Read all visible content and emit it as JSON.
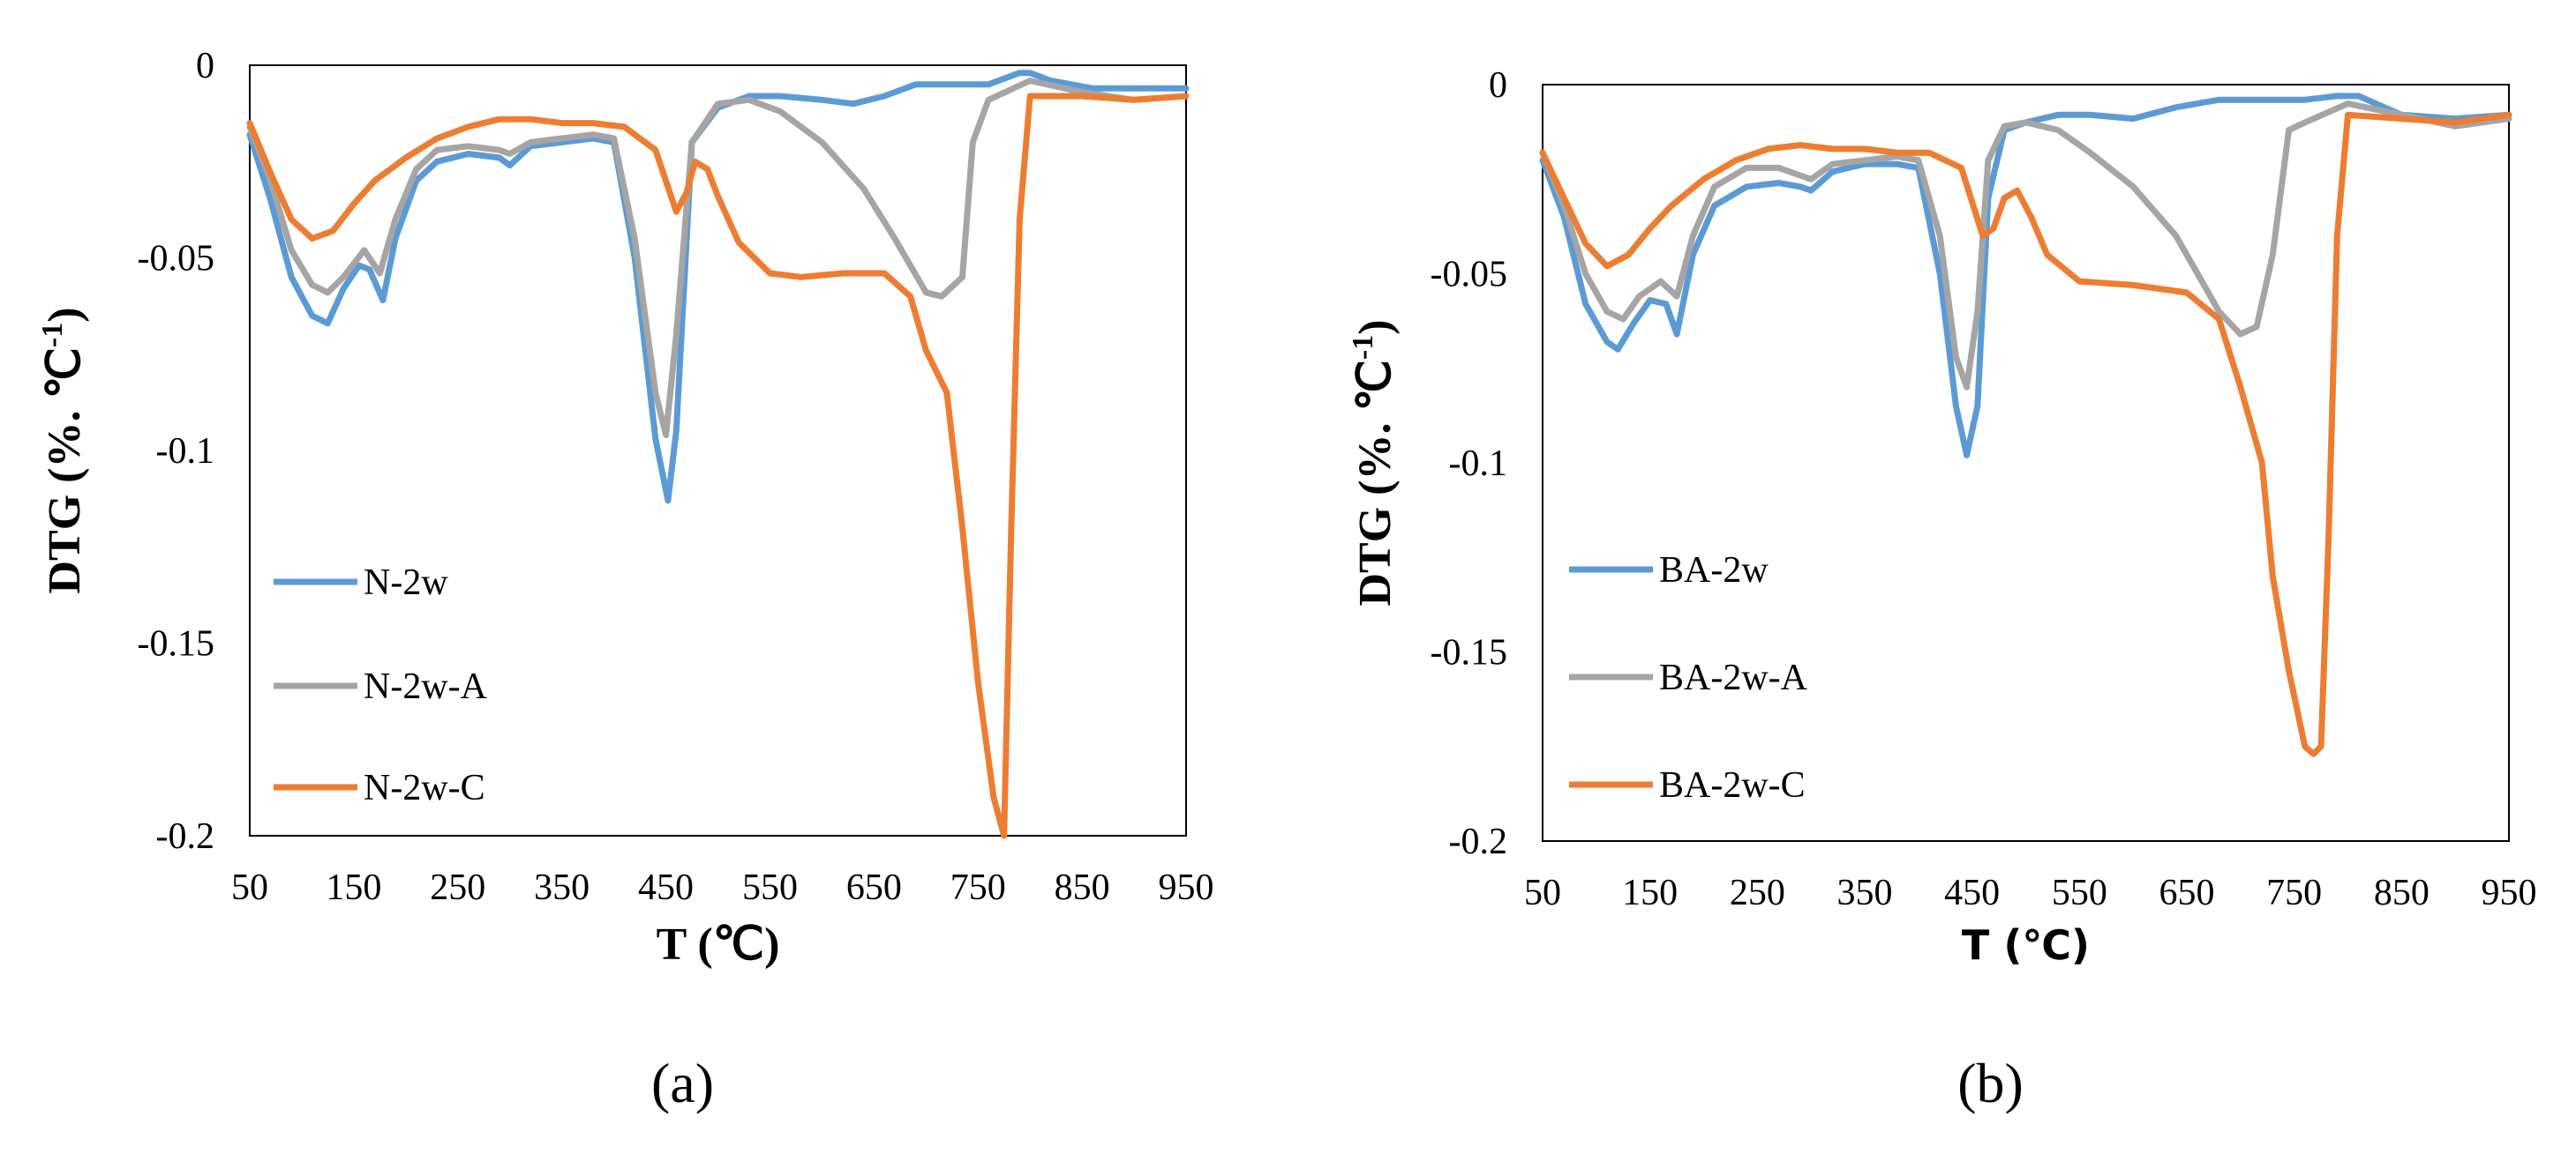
{
  "colors": {
    "blue": "#5b9bd5",
    "gray": "#a5a5a5",
    "orange": "#ed7d31"
  },
  "chart_data": [
    {
      "type": "line",
      "panel_label": "(a)",
      "xlabel": "T (℃)",
      "ylabel": "DTG (%. ℃",
      "ylabel_sup": "-1",
      "ylabel_close": ")",
      "xlim": [
        50,
        950
      ],
      "ylim": [
        -0.2,
        0
      ],
      "x_ticks": [
        "50",
        "150",
        "250",
        "350",
        "450",
        "550",
        "650",
        "750",
        "850",
        "950"
      ],
      "y_ticks": [
        "0",
        "-0.05",
        "-0.1",
        "-0.15",
        "-0.2"
      ],
      "legend_position": "left-bottom",
      "series": [
        {
          "name": "N-2w",
          "color": "#5b9bd5",
          "x": [
            50,
            70,
            90,
            110,
            125,
            140,
            155,
            165,
            178,
            190,
            210,
            230,
            260,
            290,
            300,
            320,
            350,
            380,
            400,
            420,
            440,
            452,
            460,
            475,
            500,
            530,
            560,
            600,
            630,
            660,
            690,
            730,
            760,
            790,
            800,
            820,
            860,
            900,
            930,
            950
          ],
          "y": [
            -0.018,
            -0.035,
            -0.055,
            -0.065,
            -0.067,
            -0.058,
            -0.052,
            -0.053,
            -0.061,
            -0.045,
            -0.03,
            -0.025,
            -0.023,
            -0.024,
            -0.026,
            -0.021,
            -0.02,
            -0.019,
            -0.02,
            -0.05,
            -0.097,
            -0.113,
            -0.095,
            -0.02,
            -0.011,
            -0.008,
            -0.008,
            -0.009,
            -0.01,
            -0.008,
            -0.005,
            -0.005,
            -0.005,
            -0.002,
            -0.002,
            -0.004,
            -0.006,
            -0.006,
            -0.006,
            -0.006
          ]
        },
        {
          "name": "N-2w-A",
          "color": "#a5a5a5",
          "x": [
            50,
            70,
            90,
            110,
            125,
            140,
            160,
            175,
            190,
            210,
            230,
            260,
            290,
            300,
            320,
            350,
            380,
            400,
            420,
            440,
            450,
            460,
            475,
            500,
            530,
            560,
            600,
            640,
            670,
            700,
            715,
            735,
            745,
            760,
            800,
            850,
            900,
            950
          ],
          "y": [
            -0.016,
            -0.03,
            -0.048,
            -0.057,
            -0.059,
            -0.055,
            -0.048,
            -0.054,
            -0.04,
            -0.027,
            -0.022,
            -0.021,
            -0.022,
            -0.023,
            -0.02,
            -0.019,
            -0.018,
            -0.019,
            -0.045,
            -0.085,
            -0.096,
            -0.07,
            -0.02,
            -0.01,
            -0.009,
            -0.012,
            -0.02,
            -0.032,
            -0.045,
            -0.059,
            -0.06,
            -0.055,
            -0.02,
            -0.009,
            -0.004,
            -0.007,
            -0.009,
            -0.008
          ]
        },
        {
          "name": "N-2w-C",
          "color": "#ed7d31",
          "x": [
            50,
            70,
            90,
            110,
            130,
            150,
            170,
            200,
            230,
            260,
            290,
            320,
            350,
            380,
            410,
            440,
            460,
            470,
            478,
            490,
            500,
            520,
            550,
            580,
            620,
            660,
            685,
            700,
            720,
            735,
            750,
            765,
            775,
            782,
            790,
            800,
            850,
            900,
            950
          ],
          "y": [
            -0.015,
            -0.028,
            -0.04,
            -0.045,
            -0.043,
            -0.036,
            -0.03,
            -0.024,
            -0.019,
            -0.016,
            -0.014,
            -0.014,
            -0.015,
            -0.015,
            -0.016,
            -0.022,
            -0.038,
            -0.033,
            -0.025,
            -0.027,
            -0.034,
            -0.046,
            -0.054,
            -0.055,
            -0.054,
            -0.054,
            -0.06,
            -0.074,
            -0.085,
            -0.12,
            -0.16,
            -0.19,
            -0.2,
            -0.12,
            -0.04,
            -0.008,
            -0.008,
            -0.009,
            -0.008
          ]
        }
      ]
    },
    {
      "type": "line",
      "panel_label": "(b)",
      "xlabel": "T (℃)",
      "ylabel": "DTG (%. ℃",
      "ylabel_sup": "-1",
      "ylabel_close": ")",
      "xlim": [
        50,
        950
      ],
      "ylim": [
        -0.2,
        0
      ],
      "x_ticks": [
        "50",
        "150",
        "250",
        "350",
        "450",
        "550",
        "650",
        "750",
        "850",
        "950"
      ],
      "y_ticks": [
        "0",
        "-0.05",
        "-0.1",
        "-0.15",
        "-0.2"
      ],
      "legend_position": "left-bottom",
      "series": [
        {
          "name": "BA-2w",
          "color": "#5b9bd5",
          "x": [
            50,
            70,
            90,
            110,
            120,
            135,
            150,
            165,
            175,
            190,
            210,
            240,
            270,
            290,
            300,
            320,
            350,
            380,
            400,
            420,
            435,
            445,
            455,
            465,
            480,
            500,
            530,
            560,
            600,
            640,
            680,
            720,
            760,
            790,
            810,
            850,
            900,
            950
          ],
          "y": [
            -0.02,
            -0.035,
            -0.058,
            -0.068,
            -0.07,
            -0.063,
            -0.057,
            -0.058,
            -0.066,
            -0.045,
            -0.032,
            -0.027,
            -0.026,
            -0.027,
            -0.028,
            -0.023,
            -0.021,
            -0.021,
            -0.022,
            -0.05,
            -0.085,
            -0.098,
            -0.085,
            -0.03,
            -0.012,
            -0.01,
            -0.008,
            -0.008,
            -0.009,
            -0.006,
            -0.004,
            -0.004,
            -0.004,
            -0.003,
            -0.003,
            -0.008,
            -0.009,
            -0.008
          ]
        },
        {
          "name": "BA-2w-A",
          "color": "#a5a5a5",
          "x": [
            50,
            70,
            90,
            110,
            125,
            140,
            160,
            175,
            190,
            210,
            240,
            270,
            290,
            300,
            320,
            350,
            380,
            400,
            420,
            435,
            445,
            455,
            465,
            480,
            500,
            530,
            560,
            600,
            640,
            680,
            700,
            715,
            730,
            745,
            760,
            800,
            850,
            900,
            950
          ],
          "y": [
            -0.018,
            -0.032,
            -0.05,
            -0.06,
            -0.062,
            -0.056,
            -0.052,
            -0.056,
            -0.04,
            -0.027,
            -0.022,
            -0.022,
            -0.024,
            -0.025,
            -0.021,
            -0.02,
            -0.019,
            -0.02,
            -0.04,
            -0.072,
            -0.08,
            -0.06,
            -0.02,
            -0.011,
            -0.01,
            -0.012,
            -0.018,
            -0.027,
            -0.04,
            -0.06,
            -0.066,
            -0.064,
            -0.045,
            -0.012,
            -0.01,
            -0.005,
            -0.008,
            -0.011,
            -0.009
          ]
        },
        {
          "name": "BA-2w-C",
          "color": "#ed7d31",
          "x": [
            50,
            70,
            90,
            110,
            130,
            150,
            170,
            200,
            230,
            260,
            290,
            320,
            350,
            380,
            410,
            440,
            460,
            470,
            480,
            492,
            505,
            520,
            550,
            600,
            650,
            680,
            700,
            720,
            730,
            745,
            760,
            768,
            775,
            782,
            790,
            800,
            850,
            900,
            950
          ],
          "y": [
            -0.018,
            -0.03,
            -0.042,
            -0.048,
            -0.045,
            -0.038,
            -0.032,
            -0.025,
            -0.02,
            -0.017,
            -0.016,
            -0.017,
            -0.017,
            -0.018,
            -0.018,
            -0.022,
            -0.04,
            -0.038,
            -0.03,
            -0.028,
            -0.035,
            -0.045,
            -0.052,
            -0.053,
            -0.055,
            -0.062,
            -0.08,
            -0.1,
            -0.13,
            -0.155,
            -0.175,
            -0.177,
            -0.175,
            -0.12,
            -0.04,
            -0.008,
            -0.009,
            -0.01,
            -0.008
          ]
        }
      ]
    }
  ]
}
